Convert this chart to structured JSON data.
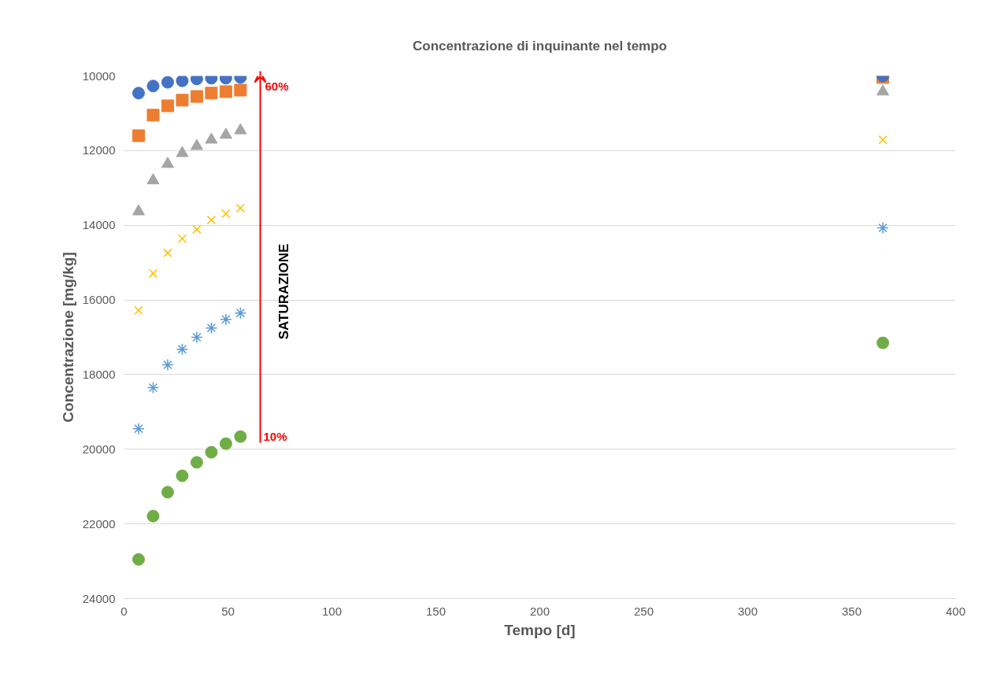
{
  "chart_data": {
    "type": "scatter",
    "title": "Concentrazione di inquinante nel tempo",
    "xlabel": "Tempo [d]",
    "ylabel": "Concentrazione [mg/kg]",
    "x": [
      7,
      14,
      21,
      28,
      35,
      42,
      49,
      56,
      365
    ],
    "series": [
      {
        "color": "#4472c4",
        "marker": "circle",
        "values": [
          10460,
          10270,
          10170,
          10130,
          10080,
          10060,
          10060,
          10040,
          10000
        ]
      },
      {
        "color": "#ed7d31",
        "marker": "square",
        "values": [
          11600,
          11050,
          10800,
          10650,
          10550,
          10460,
          10420,
          10380,
          10040
        ]
      },
      {
        "color": "#a5a5a5",
        "marker": "triangle",
        "values": [
          13630,
          12800,
          12360,
          12070,
          11880,
          11710,
          11580,
          11460,
          10420
        ]
      },
      {
        "color": "#ffc000",
        "marker": "cross",
        "values": [
          16280,
          15290,
          14740,
          14360,
          14110,
          13860,
          13690,
          13540,
          11710
        ]
      },
      {
        "color": "#5b9bd5",
        "values": [
          19450,
          18350,
          17740,
          17320,
          17000,
          16750,
          16520,
          16350,
          14070
        ]
      },
      {
        "color": "#70ad47",
        "marker": "circle",
        "values": [
          22950,
          21790,
          21150,
          20710,
          20350,
          20080,
          19850,
          19660,
          17150
        ]
      }
    ],
    "xlim": [
      0,
      400
    ],
    "xticks": [
      0,
      50,
      100,
      150,
      200,
      250,
      300,
      350,
      400
    ],
    "ylim": [
      24000,
      10000
    ],
    "yticks": [
      10000,
      12000,
      14000,
      16000,
      18000,
      20000,
      22000,
      24000
    ],
    "grid": "y",
    "annotations": [
      "60%",
      "10%",
      "SATURAZIONE"
    ]
  }
}
